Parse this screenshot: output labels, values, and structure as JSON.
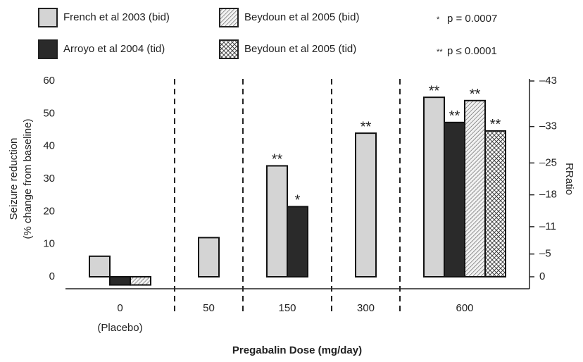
{
  "chart_data": {
    "type": "bar",
    "xlabel": "Pregabalin Dose (mg/day)",
    "ylabel": [
      "Seizure reduction",
      "(% change from baseline)"
    ],
    "y2label": "RRatio",
    "categories": [
      "0",
      "50",
      "150",
      "300",
      "600"
    ],
    "category_notes": [
      "(Placebo)",
      null,
      null,
      null,
      null
    ],
    "ylim": [
      0,
      60
    ],
    "yticks": [
      0,
      10,
      20,
      30,
      40,
      50,
      60
    ],
    "y2lim": [
      0,
      -43
    ],
    "y2ticks": [
      {
        "value": 0,
        "label": "0"
      },
      {
        "value": -5,
        "label": "–5"
      },
      {
        "value": -11,
        "label": "–11"
      },
      {
        "value": -18,
        "label": "–18"
      },
      {
        "value": -25,
        "label": "–25"
      },
      {
        "value": -33,
        "label": "–33"
      },
      {
        "value": -43,
        "label": "–43"
      }
    ],
    "series": [
      {
        "name": "French et al 2003 (bid)",
        "color": "#d4d4d4",
        "pattern": "solid",
        "values": [
          6.3,
          12,
          34,
          44,
          55
        ],
        "significance": [
          null,
          null,
          "**",
          "**",
          "**"
        ]
      },
      {
        "name": "Arroyo et al 2004 (tid)",
        "color": "#2a2a2a",
        "pattern": "solid",
        "values": [
          -2.5,
          null,
          21.5,
          null,
          47.3
        ],
        "significance": [
          null,
          null,
          "*",
          null,
          "**"
        ]
      },
      {
        "name": "Beydoun et al 2005 (bid)",
        "color": "#bbbbbb",
        "pattern": "diagonal",
        "values": [
          -2.5,
          null,
          null,
          null,
          54
        ],
        "significance": [
          null,
          null,
          null,
          null,
          "**"
        ]
      },
      {
        "name": "Beydoun et al 2005 (tid)",
        "color": "#e6e6e6",
        "pattern": "crosshatch",
        "values": [
          null,
          null,
          null,
          null,
          44.7
        ],
        "significance": [
          null,
          null,
          null,
          null,
          "**"
        ]
      }
    ],
    "notes": [
      {
        "symbol": "*",
        "text": "p = 0.0007"
      },
      {
        "symbol": "**",
        "text": "p ≤ 0.0001"
      }
    ]
  }
}
